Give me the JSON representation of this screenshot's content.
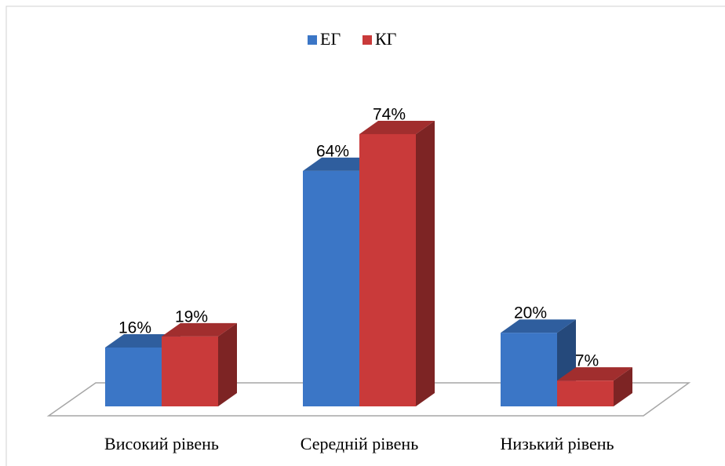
{
  "chart_data": {
    "type": "bar3d",
    "categories": [
      "Високий рівень",
      "Середній рівень",
      "Низький рівень"
    ],
    "series": [
      {
        "name": "ЕГ",
        "color": "#3b76c6",
        "values": [
          16,
          64,
          20
        ],
        "value_labels": [
          "16%",
          "64%",
          "20%"
        ]
      },
      {
        "name": "КГ",
        "color": "#c93a3a",
        "values": [
          19,
          74,
          7
        ],
        "value_labels": [
          "19%",
          "74%",
          "7%"
        ]
      }
    ],
    "legend": "top"
  }
}
